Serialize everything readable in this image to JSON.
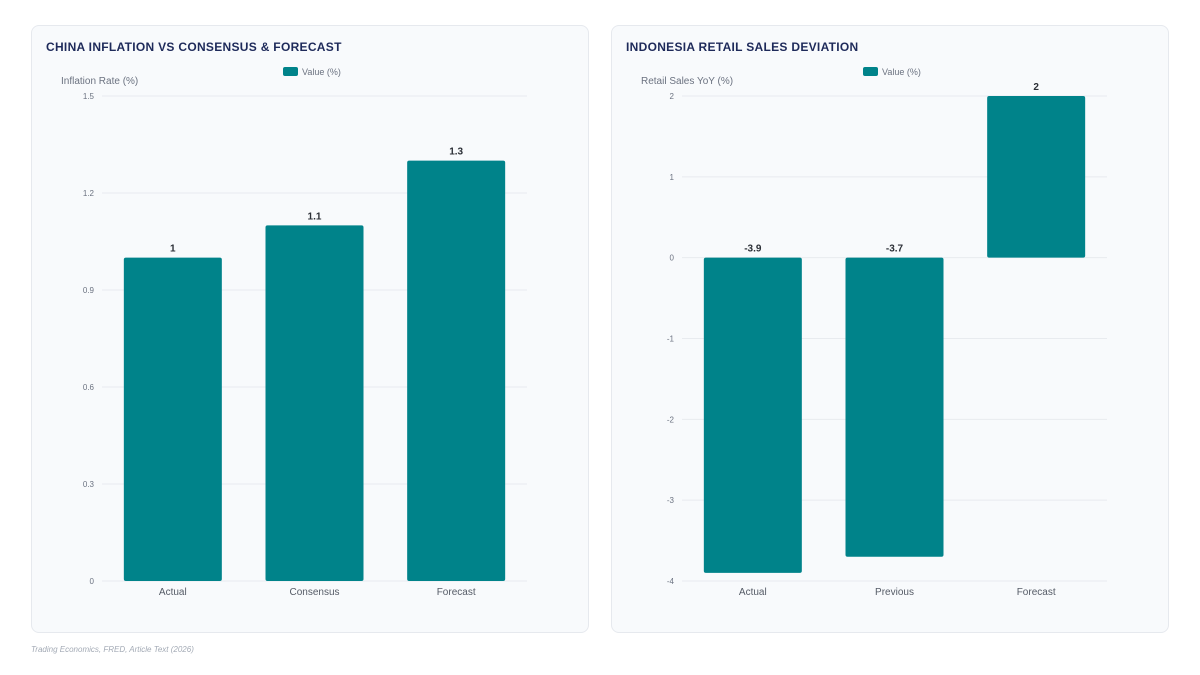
{
  "source_note": "Trading Economics, FRED, Article Text (2026)",
  "colors": {
    "bar": "#00838a",
    "grid": "#e8ebef",
    "axis_text": "#6b7280",
    "title": "#1e2a5a"
  },
  "chart_data": [
    {
      "type": "bar",
      "title": "CHINA INFLATION VS CONSENSUS & FORECAST",
      "ylabel": "Inflation Rate (%)",
      "xlabel": "",
      "categories": [
        "Actual",
        "Consensus",
        "Forecast"
      ],
      "series": [
        {
          "name": "Value (%)",
          "values": [
            1,
            1.1,
            1.3
          ]
        }
      ],
      "data_labels": [
        "1",
        "1.1",
        "1.3"
      ],
      "ylim": [
        0,
        1.5
      ],
      "yticks": [
        0,
        0.3,
        0.6,
        0.9,
        1.2,
        1.5
      ],
      "ytick_labels": [
        "0",
        "0.3",
        "0.6",
        "0.9",
        "1.2",
        "1.5"
      ],
      "legend": "top-center",
      "grid": true
    },
    {
      "type": "bar",
      "title": "INDONESIA RETAIL SALES DEVIATION",
      "ylabel": "Retail Sales YoY (%)",
      "xlabel": "",
      "categories": [
        "Actual",
        "Previous",
        "Forecast"
      ],
      "series": [
        {
          "name": "Value (%)",
          "values": [
            -3.9,
            -3.7,
            2
          ]
        }
      ],
      "data_labels": [
        "-3.9",
        "-3.7",
        "2"
      ],
      "ylim": [
        -4,
        2
      ],
      "yticks": [
        -4,
        -3,
        -2,
        -1,
        0,
        1,
        2
      ],
      "ytick_labels": [
        "-4",
        "-3",
        "-2",
        "-1",
        "0",
        "1",
        "2"
      ],
      "legend": "top-center",
      "grid": true
    }
  ]
}
